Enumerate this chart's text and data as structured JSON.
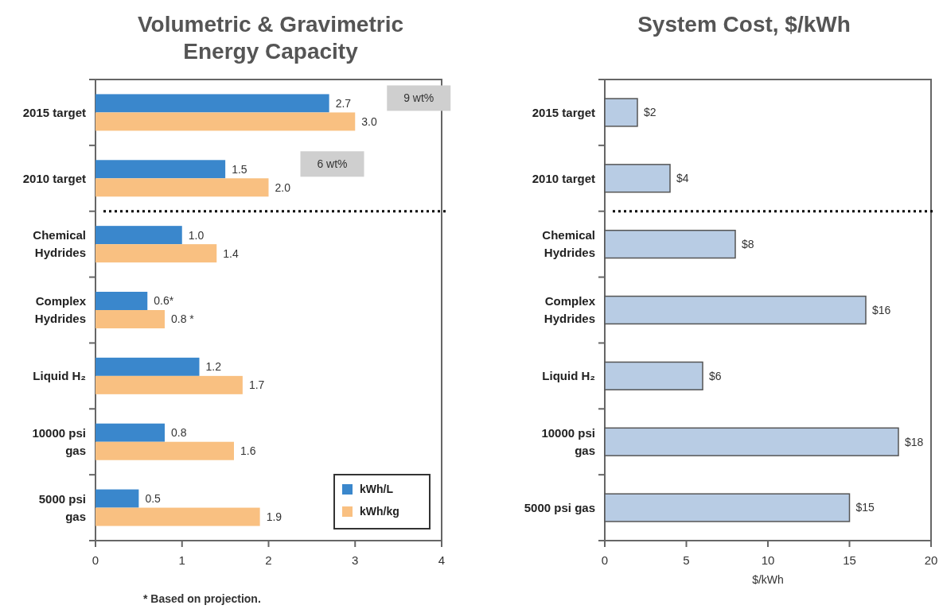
{
  "chart_data": [
    {
      "type": "bar",
      "orientation": "horizontal",
      "title": "Volumetric & Gravimetric Energy Capacity",
      "categories": [
        "2015 target",
        "2010 target",
        "Chemical Hydrides",
        "Complex Hydrides",
        "Liquid H₂",
        "10000 psi gas",
        "5000 psi gas"
      ],
      "series": [
        {
          "name": "kWh/L",
          "color": "#3a87cc",
          "values": [
            2.7,
            1.5,
            1.0,
            0.6,
            1.2,
            0.8,
            0.5
          ],
          "value_labels": [
            "2.7",
            "1.5",
            "1.0",
            "0.6*",
            "1.2",
            "0.8",
            "0.5"
          ]
        },
        {
          "name": "kWh/kg",
          "color": "#f9c081",
          "values": [
            3.0,
            2.0,
            1.4,
            0.8,
            1.7,
            1.6,
            1.9
          ],
          "value_labels": [
            "3.0",
            "2.0",
            "1.4",
            "0.8 *",
            "1.7",
            "1.6",
            "1.9"
          ]
        }
      ],
      "xlim": [
        0,
        4
      ],
      "xticks": [
        0,
        1,
        2,
        3,
        4
      ],
      "grid": false,
      "legend": "bottom right",
      "annotations": [
        "9 wt%",
        "6 wt%",
        "* Based on projection."
      ]
    },
    {
      "type": "bar",
      "orientation": "horizontal",
      "title": "System Cost, $/kWh",
      "xlabel": "$/kWh",
      "categories": [
        "2015 target",
        "2010 target",
        "Chemical Hydrides",
        "Complex Hydrides",
        "Liquid H₂",
        "10000 psi gas",
        "5000 psi gas"
      ],
      "values": [
        2,
        4,
        8,
        16,
        6,
        18,
        15
      ],
      "color": "#b8cce4",
      "value_labels": [
        "$2",
        "$4",
        "$8",
        "$16",
        "$6",
        "$18",
        "$15"
      ],
      "xlim": [
        0,
        20
      ],
      "xticks": [
        0,
        5,
        10,
        15,
        20
      ],
      "grid": false
    }
  ]
}
